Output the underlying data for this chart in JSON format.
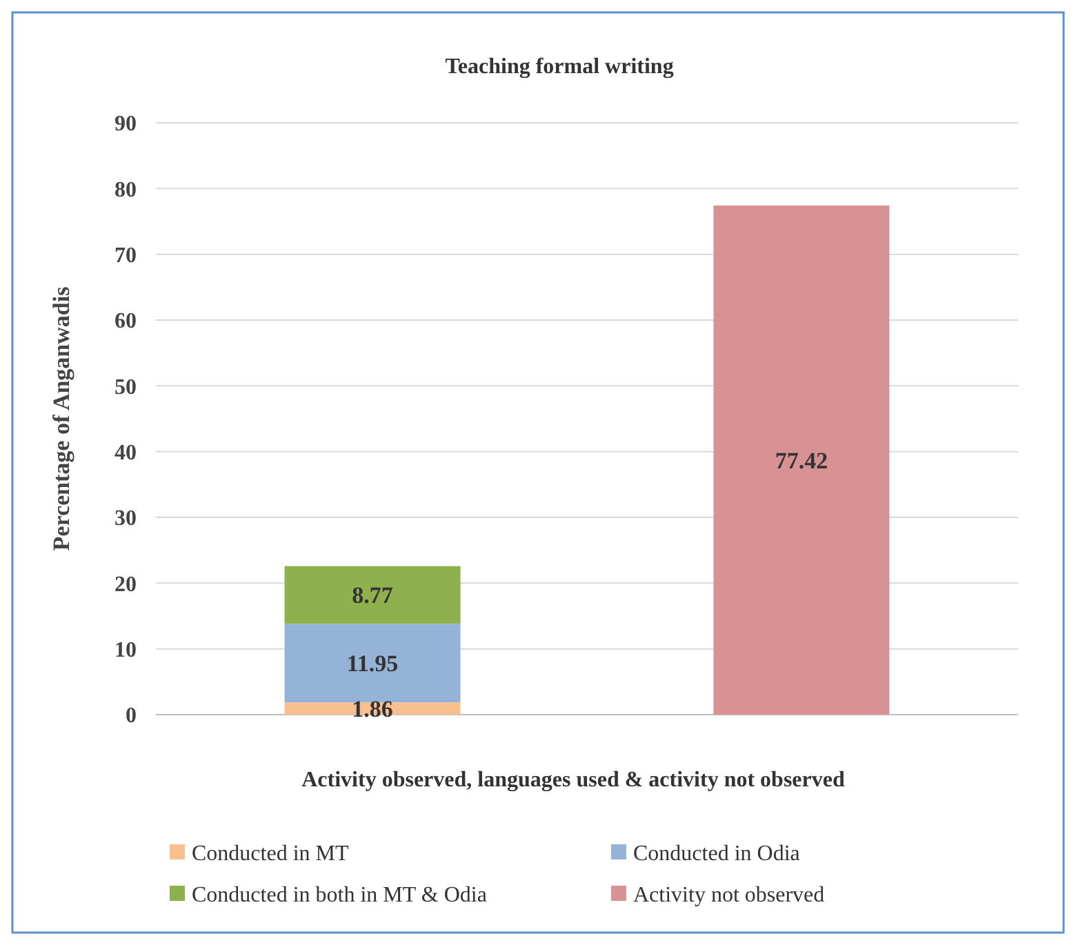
{
  "chart_data": {
    "type": "bar",
    "title": "Teaching formal writing",
    "xlabel": "Activity observed, languages used & activity not observed",
    "ylabel": "Percentage of Anganwadis",
    "categories": [
      null,
      null
    ],
    "stacked": true,
    "ylim": [
      0,
      90
    ],
    "yticks": [
      0,
      10,
      20,
      30,
      40,
      50,
      60,
      70,
      80,
      90
    ],
    "grid": "y",
    "legend": "bottom",
    "data_labels": true,
    "series": [
      {
        "name": "Conducted in MT",
        "color": "#f9bf8f",
        "values": [
          1.86,
          null
        ]
      },
      {
        "name": "Conducted in Odia",
        "color": "#95b3d7",
        "values": [
          11.95,
          null
        ]
      },
      {
        "name": "Conducted in both in MT & Odia",
        "color": "#8fb14d",
        "values": [
          8.77,
          null
        ]
      },
      {
        "name": "Activity not observed",
        "color": "#d99293",
        "values": [
          null,
          77.42
        ]
      }
    ]
  }
}
